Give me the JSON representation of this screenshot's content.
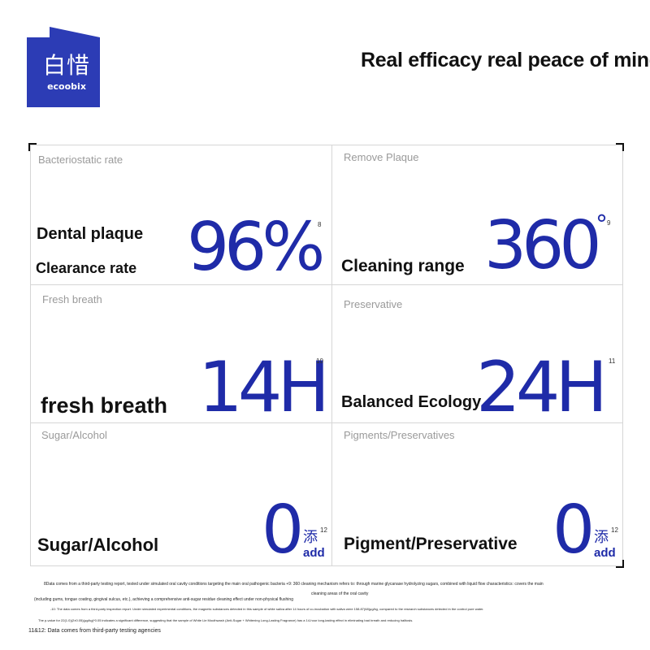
{
  "brand": {
    "name_cn": "白惜",
    "name_en": "ecoobix",
    "color": "#2c3cb5"
  },
  "headline": "Real efficacy real peace of mind",
  "accent_color": "#1f2ba8",
  "cells": [
    {
      "title": "Bacteriostatic rate",
      "label_line1": "Dental plaque",
      "label_line2": "Clearance rate",
      "value": "96%",
      "note": "8"
    },
    {
      "title": "Remove Plaque",
      "label": "Cleaning range",
      "value": "360",
      "unit": "°",
      "note": "9"
    },
    {
      "title": "Fresh breath",
      "label": "fresh breath",
      "value": "14H",
      "note": "10"
    },
    {
      "title": "Preservative",
      "label": "Balanced Ecology",
      "value": "24H",
      "note": "11"
    },
    {
      "title": "Sugar/Alcohol",
      "label": "Sugar/Alcohol",
      "value": "0",
      "add_cn": "添",
      "add_en": "add",
      "note": "12"
    },
    {
      "title": "Pigments/Preservatives",
      "label": "Pigment/Preservative",
      "value": "0",
      "add_cn": "添",
      "add_en": "add",
      "note": "12"
    }
  ],
  "footnotes": {
    "line1": "8Data comes from a third-party testing report, tested under simulated oral cavity conditions targeting the main oral pathogenic bacteria +9: 360 cleaning mechanism refers to: through marine glycanase hydrolyzing sugars, combined with liquid flow characteristics: covers the main",
    "line1b": "cleaning areas of the oral cavity",
    "line2": "(including gums, tongue coating, gingival sulcus, etc.), achieving a comprehensive anti-sugar residue cleaning effect under non-physical flushing",
    "line3": "-10: The data comes from a third-party inspection report. Under simulated experimental conditions, the magnetic substances detected in this sample of white saliva after 14 hours of co-incubation with saliva were 158.87(68)μg/kg, compared to the research substances detected in the control pure water.",
    "line4": "The p-value for 22(1.0)(2±0.05)(µg/kg)*0.05 indicates a significant difference, suggesting that the sample of White Lie Mouthwash (Anti-Sugar + Whitening Long-Lasting Fragrance) has a 14-hour long-lasting effect in eliminating bad breath and reducing halitosis.",
    "line5": "11&12: Data comes from third-party testing agencies"
  }
}
